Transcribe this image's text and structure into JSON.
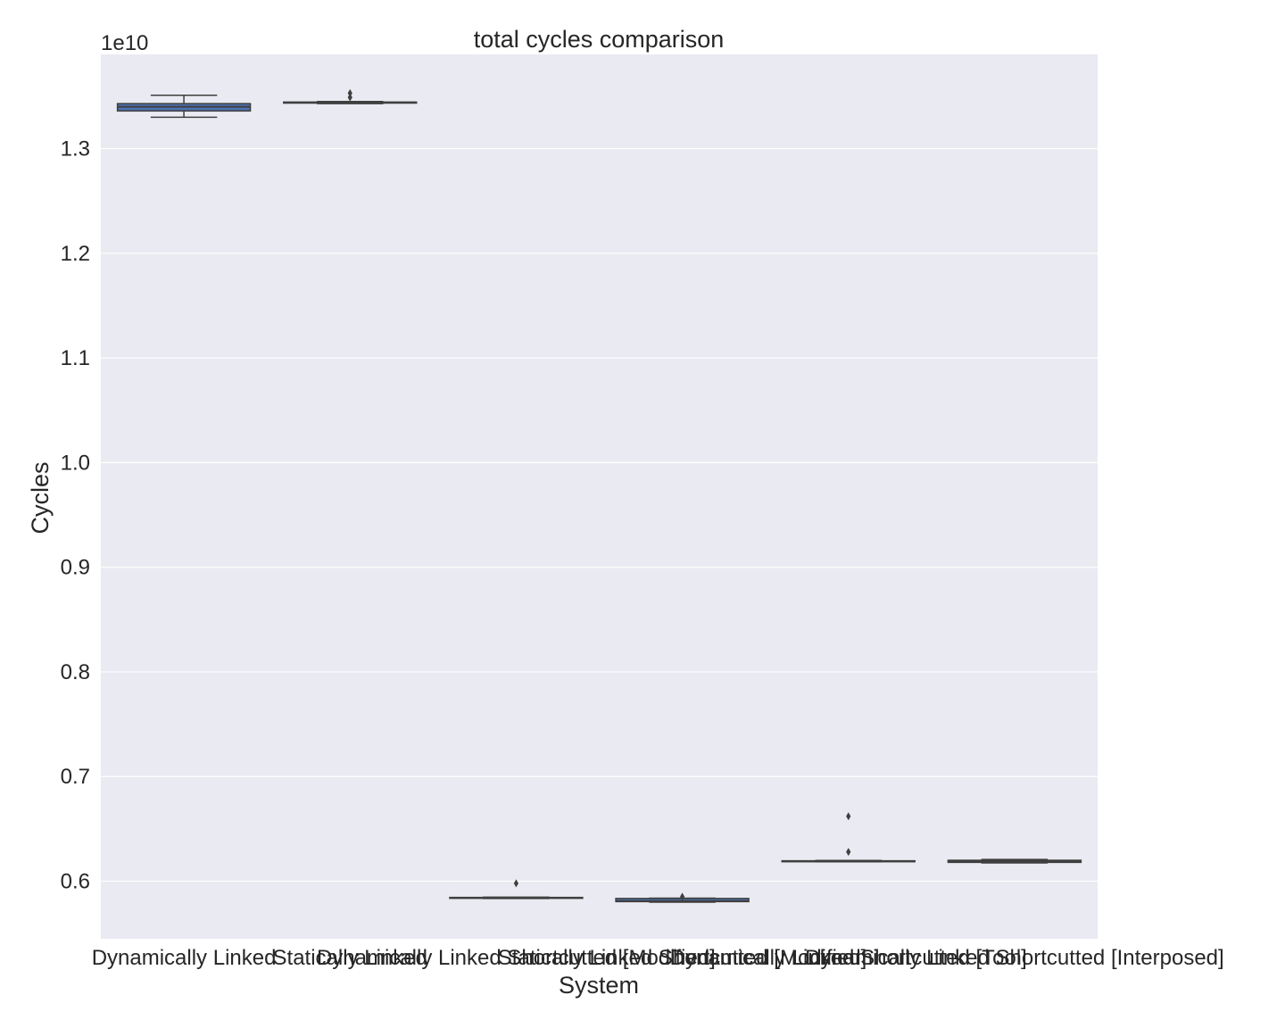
{
  "chart_data": {
    "type": "box",
    "title": "total cycles comparison",
    "xlabel": "System",
    "ylabel": "Cycles",
    "y_offset_label": "1e10",
    "y_scale": 10000000000,
    "ylim": [
      0.545,
      1.39
    ],
    "yticks": [
      0.6,
      0.7,
      0.8,
      0.9,
      1.0,
      1.1,
      1.2,
      1.3
    ],
    "ytick_labels": [
      "0.6",
      "0.7",
      "0.8",
      "0.9",
      "1.0",
      "1.1",
      "1.2",
      "1.3"
    ],
    "grid": true,
    "categories": [
      "Dynamically Linked",
      "Statically Linked",
      "Dynamically Linked Shortcutted [Modified]",
      "Statically Linked Shortcutted [Modified]",
      "Dynamically Linked Shortcutted [Tool]",
      "Dynamically Linked Shortcutted [Interposed]"
    ],
    "boxes": [
      {
        "whisker_low": 1.33,
        "q1": 1.336,
        "median": 1.34,
        "q3": 1.343,
        "whisker_high": 1.351,
        "outliers": []
      },
      {
        "whisker_low": 1.343,
        "q1": 1.3435,
        "median": 1.344,
        "q3": 1.3445,
        "whisker_high": 1.345,
        "outliers": [
          1.353,
          1.349
        ]
      },
      {
        "whisker_low": 0.5835,
        "q1": 0.5838,
        "median": 0.5842,
        "q3": 0.5845,
        "whisker_high": 0.5848,
        "outliers": [
          0.598
        ]
      },
      {
        "whisker_low": 0.58,
        "q1": 0.5805,
        "median": 0.581,
        "q3": 0.5835,
        "whisker_high": 0.5838,
        "outliers": [
          0.5852
        ]
      },
      {
        "whisker_low": 0.6185,
        "q1": 0.6188,
        "median": 0.619,
        "q3": 0.6195,
        "whisker_high": 0.6198,
        "outliers": [
          0.662,
          0.628
        ]
      },
      {
        "whisker_low": 0.6175,
        "q1": 0.618,
        "median": 0.619,
        "q3": 0.62,
        "whisker_high": 0.6208,
        "outliers": []
      }
    ],
    "colors": {
      "background": "#eaeaf2",
      "grid": "#ffffff",
      "box_fill": "#4c72b0",
      "line": "#3f3f3f",
      "text": "#262626"
    }
  }
}
